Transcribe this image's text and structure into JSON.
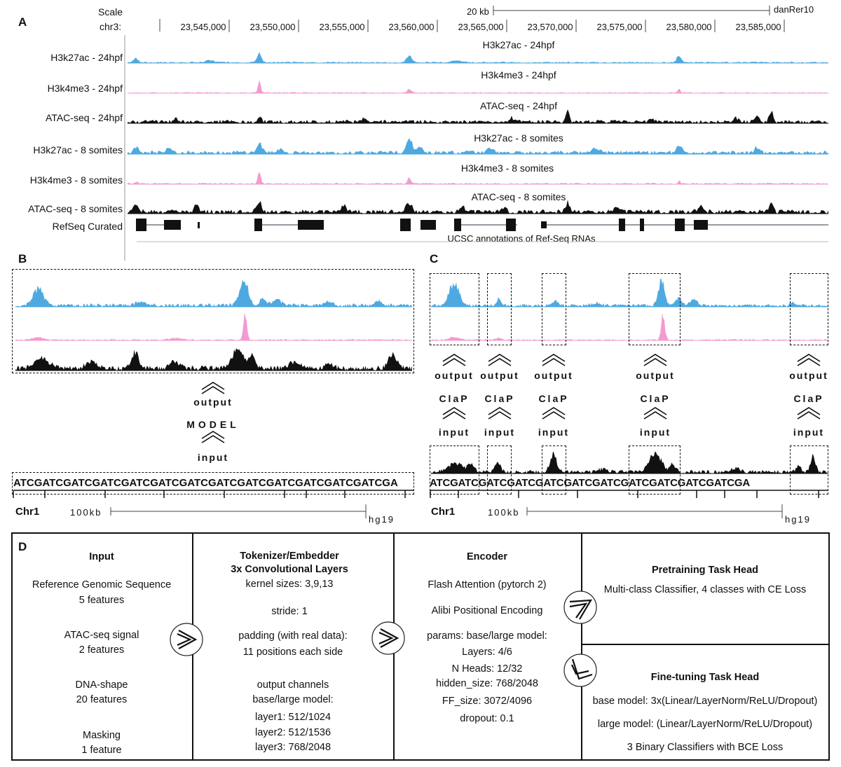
{
  "panelA": {
    "letter": "A",
    "scale_label": "Scale",
    "chrom_label": "chr3:",
    "scale_bar_text": "20 kb",
    "assembly": "danRer10",
    "coords": [
      "23,545,000",
      "23,550,000",
      "23,555,000",
      "23,560,000",
      "23,565,000",
      "23,570,000",
      "23,575,000",
      "23,580,000",
      "23,585,000"
    ],
    "tracks": [
      {
        "label": "H3k27ac - 24hpf",
        "title": "H3k27ac - 24hpf",
        "color": "#4ea9e0"
      },
      {
        "label": "H3k4me3 - 24hpf",
        "title": "H3k4me3 - 24hpf",
        "color": "#f29bd1"
      },
      {
        "label": "ATAC-seq - 24hpf",
        "title": "ATAC-seq - 24hpf",
        "color": "#111111"
      },
      {
        "label": "H3k27ac - 8 somites",
        "title": "H3k27ac - 8 somites",
        "color": "#4ea9e0"
      },
      {
        "label": "H3k4me3 - 8 somites",
        "title": "H3k4me3 - 8 somites",
        "color": "#f29bd1"
      },
      {
        "label": "ATAC-seq - 8 somites",
        "title": "ATAC-seq - 8 somites",
        "color": "#111111"
      }
    ],
    "refseq_label": "RefSeq Curated",
    "refseq_caption": "UCSC annotations of Ref-Seq RNAs"
  },
  "panelB": {
    "letter": "B",
    "output": "output",
    "model": "MODEL",
    "input": "input",
    "sequence": "ATCGATCGATCGATCGATCGATCGATCGATCGATCGATCGATCGATCGATCGA",
    "chr": "Chr1",
    "scale": "100kb",
    "assembly": "hg19"
  },
  "panelC": {
    "letter": "C",
    "output": "output",
    "clap": "ClaP",
    "input": "input",
    "sequence": "ATCGATCGATCGATCGATCGATCGATCGATCGATCGATCGATCGA",
    "chr": "Chr1",
    "scale": "100kb",
    "assembly": "hg19"
  },
  "panelD": {
    "letter": "D",
    "input": {
      "title": "Input",
      "lines": [
        "Reference Genomic Sequence",
        "5 features",
        "ATAC-seq signal",
        "2 features",
        "DNA-shape",
        "20 features",
        "Masking",
        "1 feature"
      ]
    },
    "tokenizer": {
      "title1": "Tokenizer/Embedder",
      "title2": "3x Convolutional Layers",
      "lines": [
        "kernel sizes: 3,9,13",
        "stride: 1",
        "padding (with real data):",
        "11 positions each side",
        "output channels",
        "base/large model:",
        "layer1: 512/1024",
        "layer2: 512/1536",
        "layer3: 768/2048"
      ]
    },
    "encoder": {
      "title": "Encoder",
      "lines": [
        "Flash Attention (pytorch 2)",
        "Alibi Positional Encoding",
        "params: base/large model:",
        "Layers: 4/6",
        "N Heads: 12/32",
        "hidden_size: 768/2048",
        "FF_size: 3072/4096",
        "dropout: 0.1"
      ]
    },
    "pretraining": {
      "title": "Pretraining Task Head",
      "line": "Multi-class Classifier, 4 classes with CE Loss"
    },
    "finetuning": {
      "title": "Fine-tuning Task Head",
      "lines": [
        "base model: 3x(Linear/LayerNorm/ReLU/Dropout)",
        "large model: (Linear/LayerNorm/ReLU/Dropout)",
        "3 Binary Classifiers with BCE Loss"
      ]
    }
  }
}
